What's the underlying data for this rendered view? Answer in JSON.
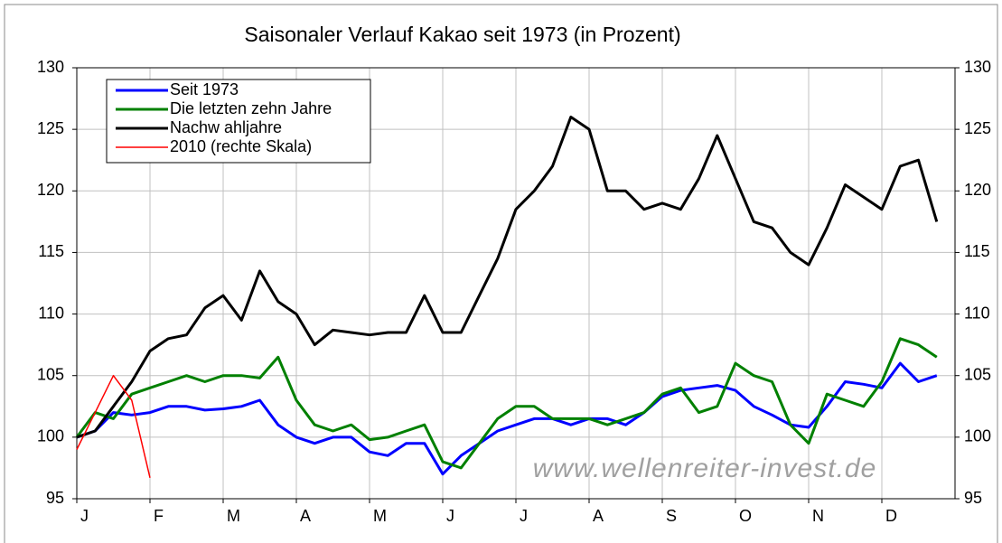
{
  "chart_data": {
    "type": "line",
    "title": "Saisonaler Verlauf Kakao seit 1973 (in Prozent)",
    "annotation": "www.wellenreiter-invest.de",
    "categories": [
      "J",
      null,
      null,
      null,
      "F",
      null,
      null,
      null,
      "M",
      null,
      null,
      null,
      "A",
      null,
      null,
      null,
      "M",
      null,
      null,
      null,
      "J",
      null,
      null,
      null,
      "J",
      null,
      null,
      null,
      "A",
      null,
      null,
      null,
      "S",
      null,
      null,
      null,
      "O",
      null,
      null,
      null,
      "N",
      null,
      null,
      null,
      "D",
      null,
      null,
      null
    ],
    "ylim": [
      95,
      130
    ],
    "yticks": [
      95,
      100,
      105,
      110,
      115,
      120,
      125,
      130
    ],
    "y2lim": [
      95,
      130
    ],
    "y2ticks": [
      95,
      100,
      105,
      110,
      115,
      120,
      125,
      130
    ],
    "grid": true,
    "legend": "upper left",
    "series": [
      {
        "name": "Seit 1973",
        "color": "#0000ff",
        "values": [
          100,
          100.5,
          102,
          101.8,
          102,
          102.5,
          102.5,
          102.2,
          102.3,
          102.5,
          103,
          101,
          100,
          99.5,
          100,
          100,
          98.8,
          98.5,
          99.5,
          99.5,
          97,
          98.5,
          99.5,
          100.5,
          101,
          101.5,
          101.5,
          101,
          101.5,
          101.5,
          101,
          102,
          103.3,
          103.8,
          104,
          104.2,
          103.8,
          102.5,
          101.8,
          101,
          100.8,
          102.5,
          104.5,
          104.3,
          104,
          106,
          104.5,
          105
        ]
      },
      {
        "name": "Die letzten zehn Jahre",
        "color": "#008000",
        "values": [
          100,
          102,
          101.5,
          103.5,
          104,
          104.5,
          105,
          104.5,
          105,
          105,
          104.8,
          106.5,
          103,
          101,
          100.5,
          101,
          99.8,
          100,
          100.5,
          101,
          98,
          97.5,
          99.5,
          101.5,
          102.5,
          102.5,
          101.5,
          101.5,
          101.5,
          101,
          101.5,
          102,
          103.5,
          104,
          102,
          102.5,
          106,
          105,
          104.5,
          101,
          99.5,
          103.5,
          103,
          102.5,
          104.5,
          108,
          107.5,
          106.5
        ]
      },
      {
        "name": "Nachw ahljahre",
        "color": "#000000",
        "values": [
          100,
          100.5,
          102.5,
          104.5,
          107,
          108,
          108.3,
          110.5,
          111.5,
          109.5,
          113.5,
          111,
          110,
          107.5,
          108.7,
          108.5,
          108.3,
          108.5,
          108.5,
          111.5,
          108.5,
          108.5,
          111.5,
          114.5,
          118.5,
          120,
          122,
          126,
          125,
          120,
          120,
          118.5,
          119,
          118.5,
          121,
          124.5,
          121,
          117.5,
          117,
          115,
          114,
          117,
          120.5,
          119.5,
          118.5,
          122,
          122.5,
          117.5
        ]
      },
      {
        "name": "2010 (rechte Skala)",
        "color": "#ff0000",
        "axis": "y2",
        "values": [
          99,
          102,
          105,
          103,
          96.7,
          null,
          null,
          null,
          null,
          null,
          null,
          null,
          null,
          null,
          null,
          null,
          null,
          null,
          null,
          null,
          null,
          null,
          null,
          null,
          null,
          null,
          null,
          null,
          null,
          null,
          null,
          null,
          null,
          null,
          null,
          null,
          null,
          null,
          null,
          null,
          null,
          null,
          null,
          null,
          null,
          null,
          null,
          null
        ]
      }
    ]
  }
}
